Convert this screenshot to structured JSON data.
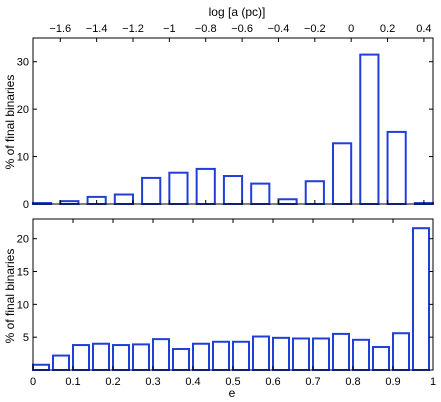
{
  "chart_data": [
    {
      "type": "bar",
      "panel": "top",
      "title": "",
      "xlabel": "log [a (pc)]",
      "xlabel_position": "top",
      "ylabel": "% of final binaries",
      "xlim": [
        -1.75,
        0.45
      ],
      "ylim": [
        0,
        35
      ],
      "xticks": [
        -1.6,
        -1.4,
        -1.2,
        -1,
        -0.8,
        -0.6,
        -0.4,
        -0.2,
        0,
        0.2,
        0.4
      ],
      "xtick_labels": [
        "−1.6",
        "−1.4",
        "−1.2",
        "−1",
        "−0.8",
        "−0.6",
        "−0.4",
        "−0.2",
        "0",
        "0.2",
        "0.4"
      ],
      "yticks": [
        0,
        10,
        20,
        30
      ],
      "ytick_labels": [
        "0",
        "10",
        "20",
        "30"
      ],
      "bar_width": 0.1,
      "x": [
        -1.7,
        -1.55,
        -1.4,
        -1.25,
        -1.1,
        -0.95,
        -0.8,
        -0.65,
        -0.5,
        -0.35,
        -0.2,
        -0.05,
        0.1,
        0.25,
        0.4
      ],
      "values": [
        0.2,
        0.6,
        1.5,
        2.0,
        5.5,
        6.6,
        7.4,
        5.9,
        4.3,
        1.0,
        4.8,
        12.8,
        31.5,
        15.2,
        0.2
      ],
      "bar_color": "#1f3fd8",
      "grid": false
    },
    {
      "type": "bar",
      "panel": "bottom",
      "title": "",
      "xlabel": "e",
      "ylabel": "% of final binaries",
      "xlim": [
        0,
        1
      ],
      "ylim": [
        0,
        23
      ],
      "xticks": [
        0,
        0.1,
        0.2,
        0.3,
        0.4,
        0.5,
        0.6,
        0.7,
        0.8,
        0.9,
        1
      ],
      "xtick_labels": [
        "0",
        "0.1",
        "0.2",
        "0.3",
        "0.4",
        "0.5",
        "0.6",
        "0.7",
        "0.8",
        "0.9",
        "1"
      ],
      "yticks": [
        5,
        10,
        15,
        20
      ],
      "ytick_labels": [
        "5",
        "10",
        "15",
        "20"
      ],
      "bar_width": 0.04,
      "x": [
        0.02,
        0.07,
        0.12,
        0.17,
        0.22,
        0.27,
        0.32,
        0.37,
        0.42,
        0.47,
        0.52,
        0.57,
        0.62,
        0.67,
        0.72,
        0.77,
        0.82,
        0.87,
        0.92,
        0.97
      ],
      "values": [
        0.8,
        2.2,
        3.8,
        4.0,
        3.8,
        3.9,
        4.7,
        3.2,
        4.0,
        4.3,
        4.3,
        5.1,
        4.9,
        4.8,
        4.8,
        5.5,
        4.6,
        3.5,
        5.6,
        21.6
      ],
      "bar_color": "#1f3fd8",
      "grid": false
    }
  ]
}
